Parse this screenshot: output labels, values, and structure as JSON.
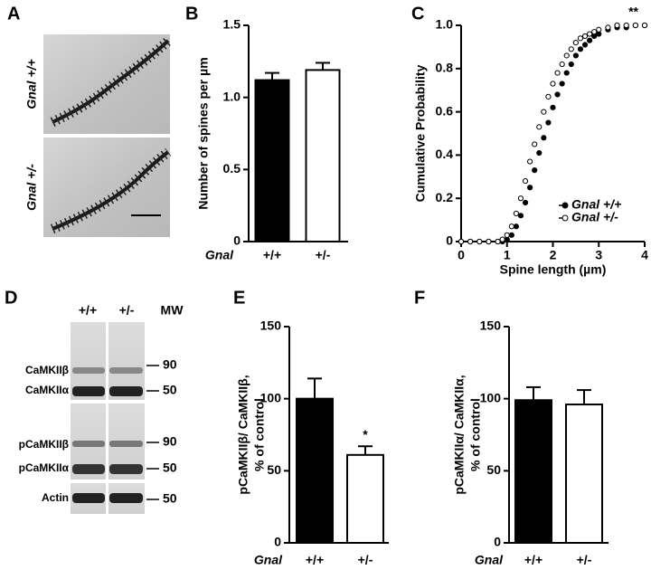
{
  "panel_a": {
    "letter": "A",
    "labels": [
      "Gnal +/+",
      "Gnal +/-"
    ]
  },
  "panel_d": {
    "letter": "D",
    "lanes": [
      "+/+",
      "+/-"
    ],
    "mw_header": "MW",
    "bands": [
      "CaMKIIβ",
      "CaMKIIα",
      "pCaMKIIβ",
      "pCaMKIIα",
      "Actin"
    ],
    "mw": [
      "90",
      "50",
      "90",
      "50",
      "50"
    ]
  },
  "chart_data": [
    {
      "type": "bar",
      "letter": "B",
      "ylabel": [
        "Number of spines per µm"
      ],
      "xlabel": "Gnal",
      "categories": [
        "+/+",
        "+/-"
      ],
      "values": [
        1.12,
        1.19
      ],
      "errors": [
        0.05,
        0.05
      ],
      "colors": [
        "#000000",
        "#ffffff"
      ],
      "ylim": [
        0,
        1.5
      ],
      "yticks": [
        0,
        0.5,
        {
          "value": 1,
          "label": "1.0"
        },
        1.5
      ]
    },
    {
      "type": "scatter",
      "letter": "C",
      "ylabel": "Cumulative Probability",
      "xlabel": "Spine length (µm)",
      "annotation": "**",
      "legend": "lower right",
      "x": [
        0,
        0.2,
        0.4,
        0.6,
        0.8,
        0.9,
        1.0,
        1.1,
        1.2,
        1.3,
        1.4,
        1.5,
        1.6,
        1.7,
        1.8,
        1.9,
        2.0,
        2.1,
        2.2,
        2.3,
        2.4,
        2.5,
        2.6,
        2.7,
        2.8,
        2.9,
        3.0,
        3.2,
        3.4,
        3.6,
        3.8,
        4.0
      ],
      "series": [
        {
          "name": "Gnal +/+",
          "color": "#000000",
          "values": [
            0,
            0,
            0,
            0,
            0,
            0,
            0.01,
            0.03,
            0.07,
            0.12,
            0.18,
            0.25,
            0.33,
            0.41,
            0.48,
            0.55,
            0.62,
            0.68,
            0.73,
            0.78,
            0.82,
            0.86,
            0.89,
            0.91,
            0.93,
            0.95,
            0.96,
            0.98,
            0.99,
            0.99,
            1.0,
            1.0
          ]
        },
        {
          "name": "Gnal +/-",
          "color": "#ffffff",
          "values": [
            0,
            0,
            0,
            0,
            0,
            0.01,
            0.03,
            0.07,
            0.13,
            0.2,
            0.28,
            0.37,
            0.45,
            0.53,
            0.6,
            0.67,
            0.73,
            0.78,
            0.82,
            0.86,
            0.89,
            0.92,
            0.94,
            0.95,
            0.96,
            0.97,
            0.98,
            0.99,
            1.0,
            1.0,
            1.0,
            1.0
          ]
        }
      ],
      "xlim": [
        0,
        4
      ],
      "xticks": [
        0,
        1,
        2,
        3,
        4
      ],
      "ylim": [
        0,
        1
      ],
      "yticks": [
        0,
        0.2,
        0.4,
        0.6,
        0.8,
        {
          "value": 1,
          "label": "1.0"
        }
      ]
    },
    {
      "type": "bar",
      "letter": "E",
      "ylabel": [
        "pCaMKIIβ/ CaMKIIβ,",
        "% of control"
      ],
      "xlabel": "Gnal",
      "annotation": "*",
      "categories": [
        "+/+",
        "+/-"
      ],
      "values": [
        100,
        61
      ],
      "errors": [
        14,
        6
      ],
      "colors": [
        "#000000",
        "#ffffff"
      ],
      "ylim": [
        0,
        150
      ],
      "yticks": [
        0,
        50,
        100,
        150
      ]
    },
    {
      "type": "bar",
      "letter": "F",
      "ylabel": [
        "pCaMKIIα/ CaMKIIα,",
        "% of control"
      ],
      "xlabel": "Gnal",
      "categories": [
        "+/+",
        "+/-"
      ],
      "values": [
        99,
        96
      ],
      "errors": [
        9,
        10
      ],
      "colors": [
        "#000000",
        "#ffffff"
      ],
      "ylim": [
        0,
        150
      ],
      "yticks": [
        0,
        50,
        100,
        150
      ]
    }
  ]
}
